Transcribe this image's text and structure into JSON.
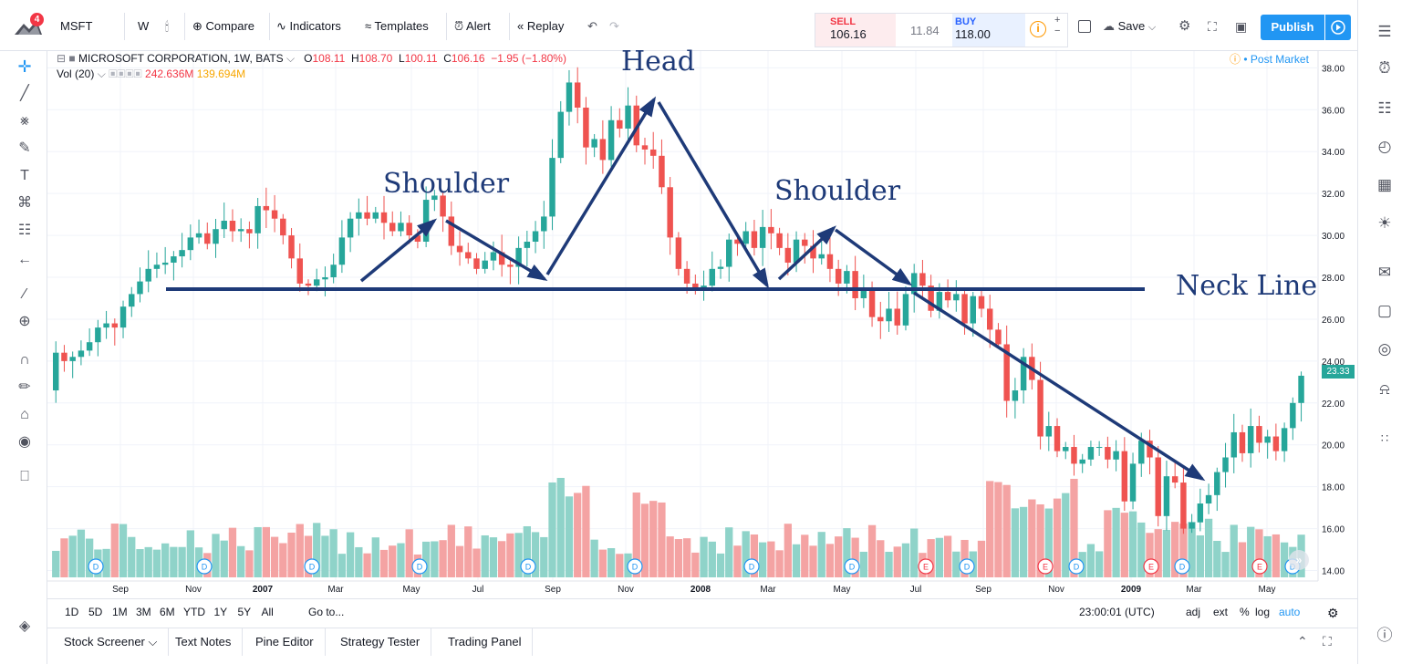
{
  "toolbar": {
    "symbol": "MSFT",
    "interval": "W",
    "compare": "Compare",
    "indicators": "Indicators",
    "templates": "Templates",
    "alert": "Alert",
    "replay": "Replay",
    "sell_label": "SELL",
    "sell_price": "106.16",
    "spread": "11.84",
    "buy_label": "BUY",
    "buy_price": "118.00",
    "save": "Save",
    "publish": "Publish",
    "notification_count": "4"
  },
  "legend": {
    "title": "MICROSOFT CORPORATION, 1W, BATS",
    "open_label": "O",
    "open": "108.11",
    "high_label": "H",
    "high": "108.70",
    "low_label": "L",
    "low": "100.11",
    "close_label": "C",
    "close": "106.16",
    "change": "−1.95 (−1.80%)",
    "vol_label": "Vol (20)",
    "vol_value1": "242.636M",
    "vol_value2": "139.694M",
    "post_market": "Post Market"
  },
  "annotations": {
    "head": "Head",
    "left_shoulder": "Shoulder",
    "right_shoulder": "Shoulder",
    "neck_line": "Neck Line"
  },
  "price_axis": {
    "ticks": [
      "38.00",
      "36.00",
      "34.00",
      "32.00",
      "30.00",
      "28.00",
      "26.00",
      "24.00",
      "22.00",
      "20.00",
      "18.00",
      "16.00",
      "14.00"
    ],
    "last_price": "23.33"
  },
  "time_axis": [
    "Sep",
    "Nov",
    "2007",
    "Mar",
    "May",
    "Jul",
    "Sep",
    "Nov",
    "2008",
    "Mar",
    "May",
    "Jul",
    "Sep",
    "Nov",
    "2009",
    "Mar",
    "May"
  ],
  "timeframe": {
    "ranges": [
      "1D",
      "5D",
      "1M",
      "3M",
      "6M",
      "YTD",
      "1Y",
      "5Y",
      "All"
    ],
    "goto": "Go to...",
    "clock": "23:00:01 (UTC)",
    "options": [
      "adj",
      "ext",
      "%",
      "log",
      "auto"
    ]
  },
  "bottom_tabs": [
    "Stock Screener",
    "Text Notes",
    "Pine Editor",
    "Strategy Tester",
    "Trading Panel"
  ],
  "colors": {
    "up": "#26a69a",
    "down": "#ef5350",
    "annotation": "#1e3a78",
    "accent": "#2196f3"
  },
  "chart_data": {
    "type": "candlestick",
    "y_range": [
      13.5,
      38.8
    ],
    "closes": [
      24.4,
      24.0,
      24.2,
      24.5,
      24.9,
      25.6,
      25.8,
      25.6,
      26.6,
      27.2,
      27.8,
      28.4,
      28.6,
      28.7,
      29.0,
      29.3,
      29.9,
      30.1,
      29.6,
      30.3,
      30.7,
      30.2,
      30.3,
      30.1,
      31.4,
      31.2,
      30.8,
      30.0,
      28.9,
      27.7,
      27.6,
      27.9,
      28.0,
      28.6,
      29.9,
      30.8,
      31.1,
      30.8,
      31.1,
      30.6,
      30.2,
      30.6,
      30.0,
      29.7,
      31.7,
      31.9,
      30.9,
      29.5,
      29.2,
      28.9,
      28.4,
      28.8,
      29.2,
      28.6,
      28.5,
      29.4,
      29.7,
      30.2,
      30.9,
      33.7,
      35.9,
      37.3,
      36.1,
      34.2,
      34.6,
      33.6,
      35.5,
      35.1,
      36.2,
      34.3,
      34.1,
      33.8,
      32.3,
      29.9,
      28.4,
      27.7,
      27.4,
      27.6,
      28.4,
      28.5,
      29.8,
      29.6,
      30.2,
      29.4,
      30.4,
      30.1,
      29.4,
      28.7,
      29.8,
      29.5,
      28.9,
      29.1,
      28.4,
      27.7,
      28.3,
      27.0,
      27.5,
      26.1,
      25.9,
      26.5,
      25.7,
      27.2,
      28.2,
      27.6,
      26.4,
      27.3,
      26.9,
      27.2,
      25.8,
      27.1,
      26.5,
      25.5,
      24.8,
      22.1,
      22.6,
      24.2,
      23.1,
      20.4,
      20.9,
      19.7,
      19.9,
      19.1,
      19.3,
      19.9,
      19.9,
      19.3,
      19.7,
      17.3,
      19.1,
      20.2,
      19.4,
      16.6,
      18.5,
      18.2,
      16.0,
      16.3,
      17.2,
      17.6,
      18.7,
      19.4,
      20.6,
      19.6,
      20.9,
      20.1,
      20.4,
      19.7,
      20.8,
      22.0,
      23.3
    ],
    "volume_range": [
      0,
      3
    ]
  }
}
